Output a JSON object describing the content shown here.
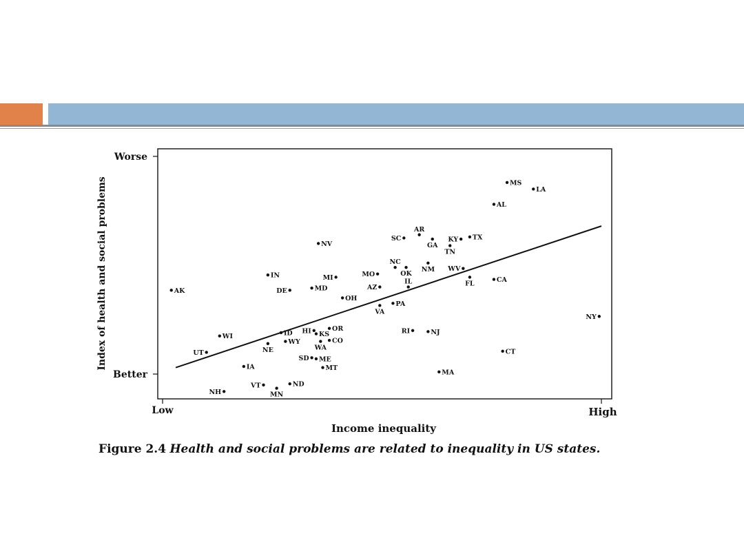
{
  "colors": {
    "accent_orange": "#e0824a",
    "accent_blue": "#92b6d4",
    "rule": "#8a8a8a",
    "ink": "#111111"
  },
  "caption": {
    "number": "Figure 2.4",
    "text": "Health and social problems are related to inequality in US states."
  },
  "chart_data": {
    "type": "scatter",
    "xlabel": "Income inequality",
    "ylabel": "Index of health and social problems",
    "x_ticks": {
      "low": "Low",
      "high": "High"
    },
    "y_ticks": {
      "top": "Worse",
      "bottom": "Better"
    },
    "xlim": [
      0,
      100
    ],
    "ylim": [
      -8,
      108
    ],
    "y_tick_values": {
      "top": 100,
      "bottom": 0
    },
    "grid": false,
    "trend_line": {
      "x": [
        3,
        100
      ],
      "y": [
        3,
        68
      ]
    },
    "points": [
      {
        "label": "MS",
        "x": 78.5,
        "y": 88,
        "label_pos": "right"
      },
      {
        "label": "LA",
        "x": 84.5,
        "y": 85,
        "label_pos": "right"
      },
      {
        "label": "AL",
        "x": 75.5,
        "y": 78,
        "label_pos": "right"
      },
      {
        "label": "AR",
        "x": 58.5,
        "y": 64,
        "label_pos": "above"
      },
      {
        "label": "SC",
        "x": 55,
        "y": 62.5,
        "label_pos": "left"
      },
      {
        "label": "GA",
        "x": 61.5,
        "y": 62,
        "label_pos": "below"
      },
      {
        "label": "KY",
        "x": 68,
        "y": 62,
        "label_pos": "left"
      },
      {
        "label": "TX",
        "x": 70,
        "y": 63,
        "label_pos": "right"
      },
      {
        "label": "TN",
        "x": 65.5,
        "y": 59,
        "label_pos": "below"
      },
      {
        "label": "NV",
        "x": 35.5,
        "y": 60,
        "label_pos": "right"
      },
      {
        "label": "NC",
        "x": 53,
        "y": 49,
        "label_pos": "above"
      },
      {
        "label": "OK",
        "x": 55.5,
        "y": 49,
        "label_pos": "below"
      },
      {
        "label": "NM",
        "x": 60.5,
        "y": 51,
        "label_pos": "below"
      },
      {
        "label": "WV",
        "x": 68.5,
        "y": 48.5,
        "label_pos": "left"
      },
      {
        "label": "FL",
        "x": 70,
        "y": 44.5,
        "label_pos": "below"
      },
      {
        "label": "CA",
        "x": 75.5,
        "y": 43.5,
        "label_pos": "right"
      },
      {
        "label": "IN",
        "x": 24,
        "y": 45.5,
        "label_pos": "right"
      },
      {
        "label": "MI",
        "x": 39.5,
        "y": 44.5,
        "label_pos": "left"
      },
      {
        "label": "MO",
        "x": 49,
        "y": 46,
        "label_pos": "left"
      },
      {
        "label": "IL",
        "x": 56,
        "y": 40,
        "label_pos": "above"
      },
      {
        "label": "AZ",
        "x": 49.5,
        "y": 40,
        "label_pos": "left"
      },
      {
        "label": "MD",
        "x": 34,
        "y": 39.5,
        "label_pos": "right"
      },
      {
        "label": "DE",
        "x": 29,
        "y": 38.5,
        "label_pos": "left"
      },
      {
        "label": "AK",
        "x": 2,
        "y": 38.5,
        "label_pos": "right"
      },
      {
        "label": "OH",
        "x": 41,
        "y": 35,
        "label_pos": "right"
      },
      {
        "label": "PA",
        "x": 52.5,
        "y": 32.5,
        "label_pos": "right"
      },
      {
        "label": "VA",
        "x": 49.5,
        "y": 31.5,
        "label_pos": "below"
      },
      {
        "label": "NY",
        "x": 99.5,
        "y": 26.5,
        "label_pos": "left"
      },
      {
        "label": "OR",
        "x": 38,
        "y": 21,
        "label_pos": "right"
      },
      {
        "label": "HI",
        "x": 34.5,
        "y": 20,
        "label_pos": "left"
      },
      {
        "label": "KS",
        "x": 35,
        "y": 18.5,
        "label_pos": "right"
      },
      {
        "label": "ID",
        "x": 27,
        "y": 19,
        "label_pos": "right"
      },
      {
        "label": "WI",
        "x": 13,
        "y": 17.5,
        "label_pos": "right"
      },
      {
        "label": "CO",
        "x": 38,
        "y": 15.5,
        "label_pos": "right"
      },
      {
        "label": "WY",
        "x": 28,
        "y": 15,
        "label_pos": "right"
      },
      {
        "label": "WA",
        "x": 36,
        "y": 15,
        "label_pos": "below"
      },
      {
        "label": "NE",
        "x": 24,
        "y": 14,
        "label_pos": "below"
      },
      {
        "label": "RI",
        "x": 57,
        "y": 20,
        "label_pos": "left"
      },
      {
        "label": "NJ",
        "x": 60.5,
        "y": 19.5,
        "label_pos": "right"
      },
      {
        "label": "UT",
        "x": 10,
        "y": 10,
        "label_pos": "left"
      },
      {
        "label": "CT",
        "x": 77.5,
        "y": 10.5,
        "label_pos": "right"
      },
      {
        "label": "SD",
        "x": 34,
        "y": 7.5,
        "label_pos": "left"
      },
      {
        "label": "ME",
        "x": 35,
        "y": 7,
        "label_pos": "right"
      },
      {
        "label": "IA",
        "x": 18.5,
        "y": 3.5,
        "label_pos": "right"
      },
      {
        "label": "MT",
        "x": 36.5,
        "y": 3,
        "label_pos": "right"
      },
      {
        "label": "MA",
        "x": 63,
        "y": 1,
        "label_pos": "right"
      },
      {
        "label": "VT",
        "x": 23,
        "y": -5,
        "label_pos": "left"
      },
      {
        "label": "ND",
        "x": 29,
        "y": -4.5,
        "label_pos": "right"
      },
      {
        "label": "MN",
        "x": 26,
        "y": -6.5,
        "label_pos": "below"
      },
      {
        "label": "NH",
        "x": 14,
        "y": -8,
        "label_pos": "left"
      }
    ]
  }
}
